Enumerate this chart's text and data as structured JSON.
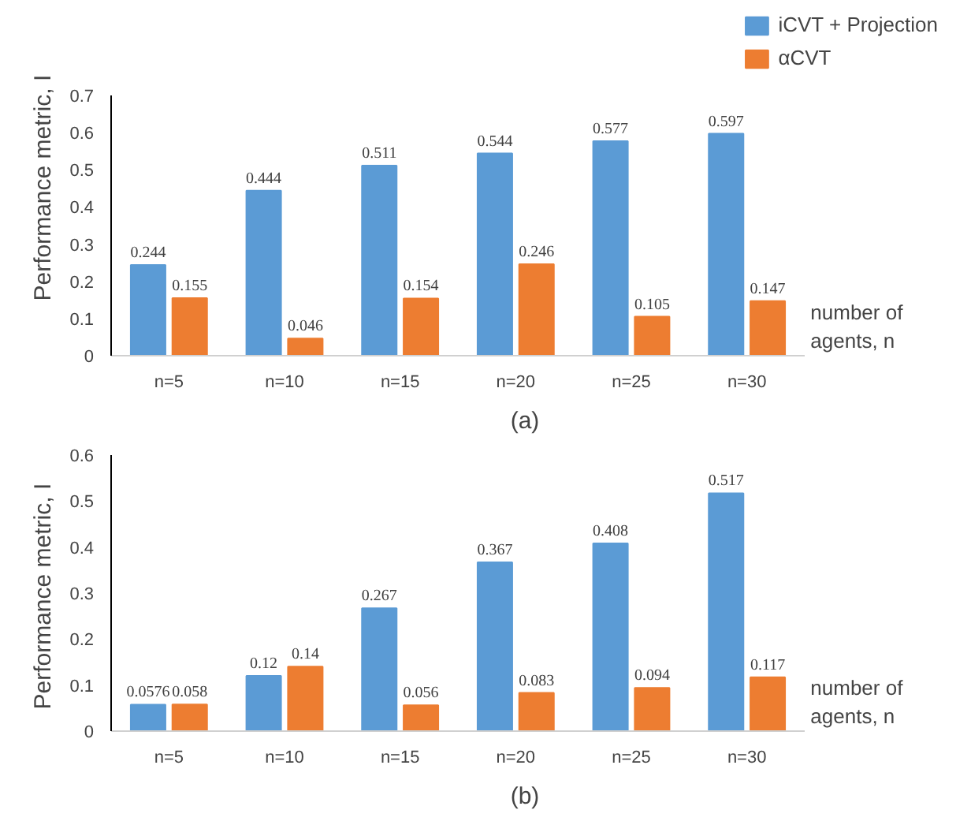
{
  "chart_data": [
    {
      "type": "bar",
      "categories": [
        "n=5",
        "n=10",
        "n=15",
        "n=20",
        "n=25",
        "n=30"
      ],
      "ylabel": "Performance  metric, I",
      "xlabel": "number of\nagents, n",
      "ylim": [
        0,
        0.7
      ],
      "yticks": [
        0,
        0.1,
        0.2,
        0.3,
        0.4,
        0.5,
        0.6,
        0.7
      ],
      "data_labels": true,
      "legend": "top right",
      "annotations": [
        "(a)"
      ],
      "series": [
        {
          "name": "iCVT + Projection",
          "color": "#5b9bd5",
          "values": [
            0.244,
            0.444,
            0.511,
            0.544,
            0.577,
            0.597
          ]
        },
        {
          "name": "αCVT",
          "color": "#ed7d31",
          "values": [
            0.155,
            0.046,
            0.154,
            0.246,
            0.105,
            0.147
          ]
        }
      ]
    },
    {
      "type": "bar",
      "categories": [
        "n=5",
        "n=10",
        "n=15",
        "n=20",
        "n=25",
        "n=30"
      ],
      "ylabel": "Performance  metric, I",
      "xlabel": "number of\nagents, n",
      "ylim": [
        0,
        0.6
      ],
      "yticks": [
        0,
        0.1,
        0.2,
        0.3,
        0.4,
        0.5,
        0.6
      ],
      "data_labels": true,
      "annotations": [
        "(b)"
      ],
      "series": [
        {
          "color": "#5b9bd5",
          "values": [
            0.0576,
            0.12,
            0.267,
            0.367,
            0.408,
            0.517
          ]
        },
        {
          "color": "#ed7d31",
          "values": [
            0.058,
            0.14,
            0.056,
            0.083,
            0.094,
            0.117
          ]
        }
      ]
    }
  ]
}
